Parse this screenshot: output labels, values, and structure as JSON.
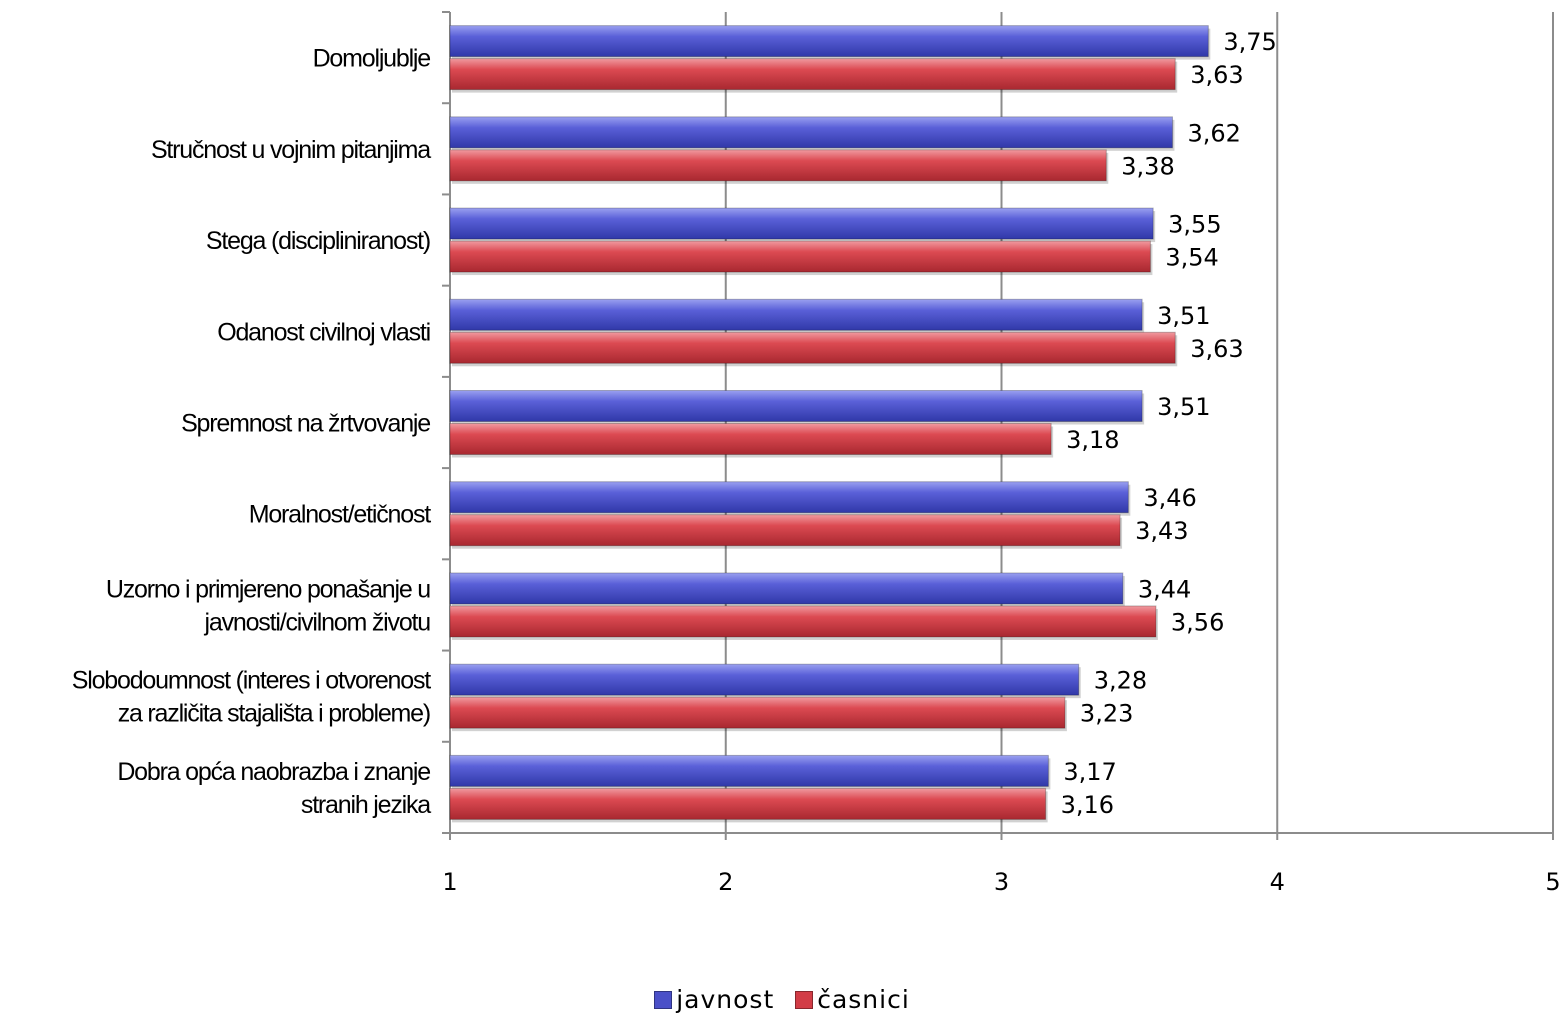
{
  "chart_data": {
    "type": "bar",
    "orientation": "horizontal",
    "categories": [
      "Domoljublje",
      "Stručnost u vojnim pitanjima",
      "Stega (discipliniranost)",
      "Odanost civilnoj vlasti",
      "Spremnost na žrtvovanje",
      "Moralnost/etičnost",
      "Uzorno i primjereno ponašanje u javnosti/civilnom životu",
      "Slobodoumnost (interes i otvorenost za različita stajališta i probleme)",
      "Dobra opća naobrazba i znanje stranih jezika"
    ],
    "category_lines": [
      [
        "Domoljublje"
      ],
      [
        "Stručnost u vojnim pitanjima"
      ],
      [
        "Stega (discipliniranost)"
      ],
      [
        "Odanost civilnoj vlasti"
      ],
      [
        "Spremnost na žrtvovanje"
      ],
      [
        "Moralnost/etičnost"
      ],
      [
        "Uzorno i primjereno ponašanje u",
        "javnosti/civilnom životu"
      ],
      [
        "Slobodoumnost (interes i otvorenost",
        "za različita stajališta i probleme)"
      ],
      [
        "Dobra opća naobrazba i znanje",
        "stranih jezika"
      ]
    ],
    "series": [
      {
        "name": "javnost",
        "color": "#4a50c8",
        "values": [
          3.75,
          3.62,
          3.55,
          3.51,
          3.51,
          3.46,
          3.44,
          3.28,
          3.17
        ],
        "labels": [
          "3,75",
          "3,62",
          "3,55",
          "3,51",
          "3,51",
          "3,46",
          "3,44",
          "3,28",
          "3,17"
        ]
      },
      {
        "name": "časnici",
        "color": "#d23c46",
        "values": [
          3.63,
          3.38,
          3.54,
          3.63,
          3.18,
          3.43,
          3.56,
          3.23,
          3.16
        ],
        "labels": [
          "3,63",
          "3,38",
          "3,54",
          "3,63",
          "3,18",
          "3,43",
          "3,56",
          "3,23",
          "3,16"
        ]
      }
    ],
    "xlim": [
      1,
      5
    ],
    "xticks": [
      "1",
      "2",
      "3",
      "4",
      "5"
    ],
    "grid": true,
    "legend": "bottom"
  }
}
